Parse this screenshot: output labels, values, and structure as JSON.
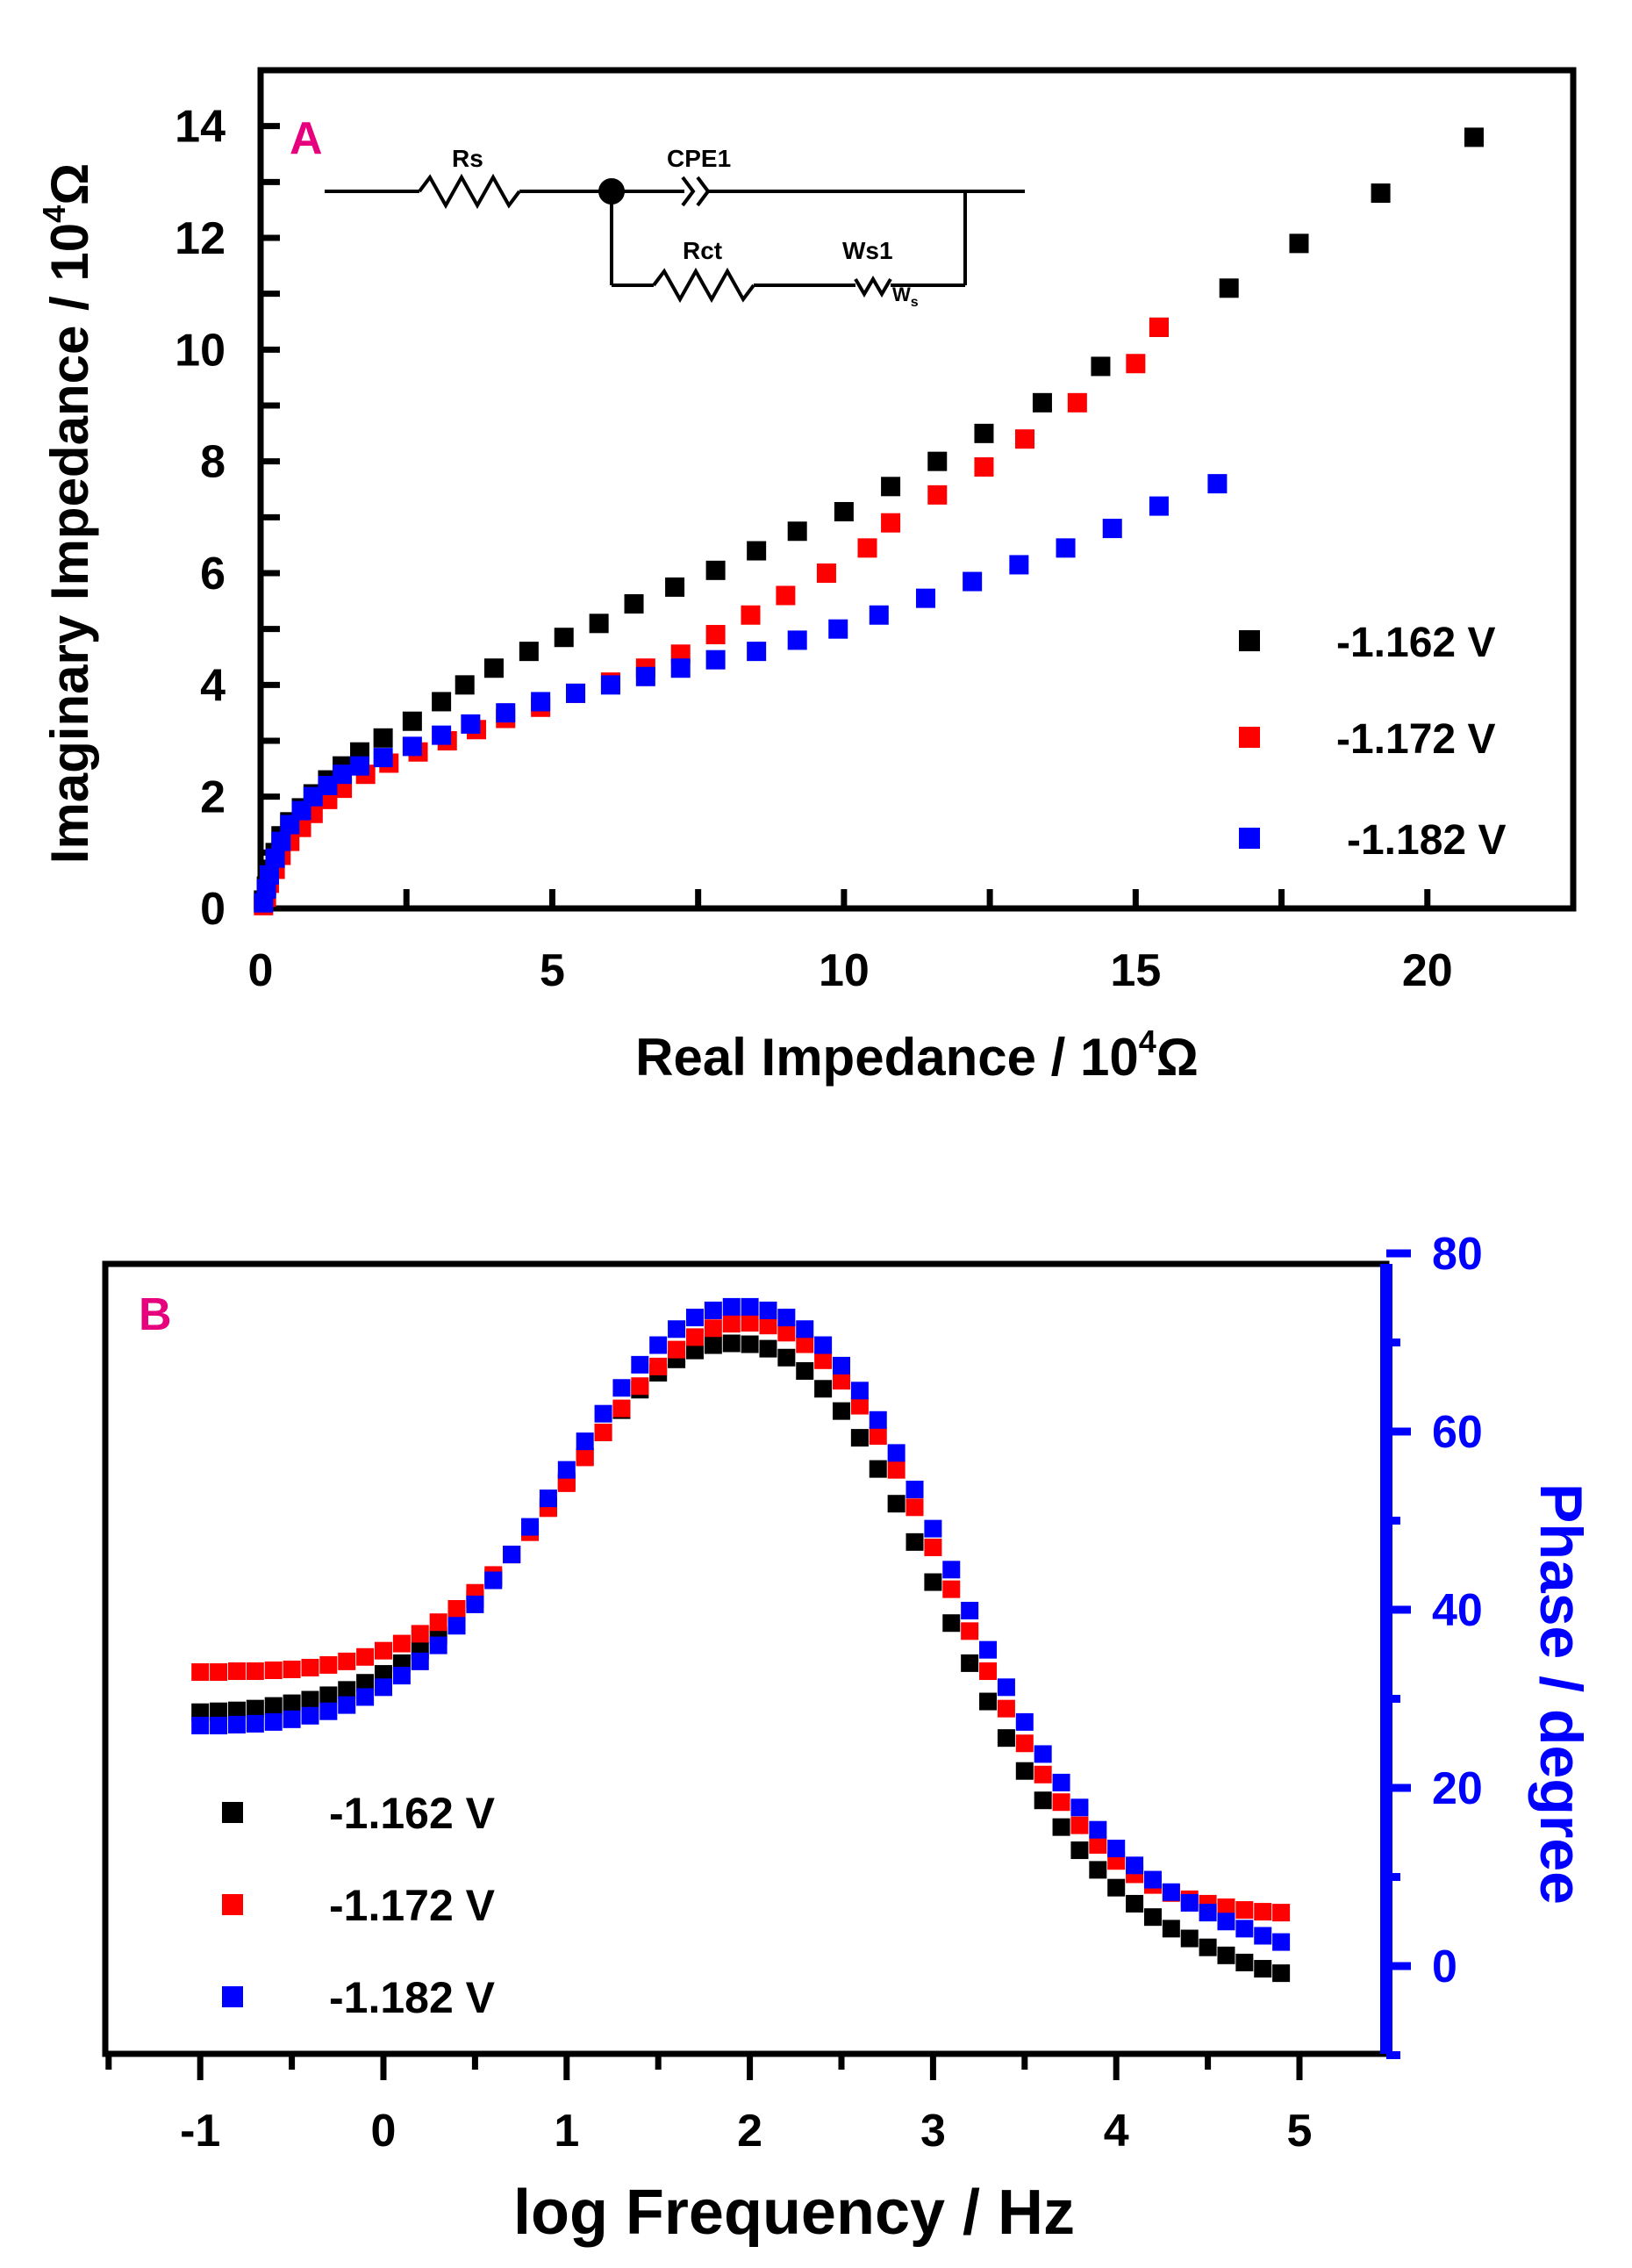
{
  "chart_data": [
    {
      "type": "scatter",
      "panel": "A",
      "title": "",
      "xlabel": "Real Impedance / 10",
      "xlabel_sup": "4",
      "xlabel_unit": "Ω",
      "ylabel": "Imaginary Impedance / 10",
      "ylabel_sup": "4",
      "ylabel_unit": "Ω",
      "xlim": [
        0,
        22.5
      ],
      "ylim": [
        0,
        15
      ],
      "xticks": [
        "0",
        "5",
        "10",
        "15",
        "20"
      ],
      "yticks": [
        "0",
        "2",
        "4",
        "6",
        "8",
        "10",
        "12",
        "14"
      ],
      "legend_position": "right",
      "circuit": {
        "r1": "Rs",
        "cpe": "CPE1",
        "r2": "Rct",
        "w": "Ws1",
        "w_symbol": "W",
        "w_sub": "s"
      },
      "series": [
        {
          "name": "-1.162 V",
          "color": "#000000",
          "points": [
            [
              0.05,
              0.15
            ],
            [
              0.1,
              0.4
            ],
            [
              0.15,
              0.7
            ],
            [
              0.25,
              1.0
            ],
            [
              0.35,
              1.3
            ],
            [
              0.5,
              1.55
            ],
            [
              0.7,
              1.8
            ],
            [
              0.9,
              2.05
            ],
            [
              1.15,
              2.3
            ],
            [
              1.4,
              2.55
            ],
            [
              1.7,
              2.8
            ],
            [
              2.1,
              3.05
            ],
            [
              2.6,
              3.35
            ],
            [
              3.1,
              3.7
            ],
            [
              3.5,
              4.0
            ],
            [
              4.0,
              4.3
            ],
            [
              4.6,
              4.6
            ],
            [
              5.2,
              4.85
            ],
            [
              5.8,
              5.1
            ],
            [
              6.4,
              5.45
            ],
            [
              7.1,
              5.75
            ],
            [
              7.8,
              6.05
            ],
            [
              8.5,
              6.4
            ],
            [
              9.2,
              6.75
            ],
            [
              10.0,
              7.1
            ],
            [
              10.8,
              7.55
            ],
            [
              11.6,
              8.0
            ],
            [
              12.4,
              8.5
            ],
            [
              13.4,
              9.05
            ],
            [
              14.4,
              9.7
            ],
            [
              15.4,
              10.4
            ],
            [
              16.6,
              11.1
            ],
            [
              17.8,
              11.9
            ],
            [
              19.2,
              12.8
            ],
            [
              20.8,
              13.8
            ]
          ]
        },
        {
          "name": "-1.172 V",
          "color": "#ff0000",
          "points": [
            [
              0.05,
              0.05
            ],
            [
              0.1,
              0.2
            ],
            [
              0.15,
              0.45
            ],
            [
              0.25,
              0.7
            ],
            [
              0.35,
              0.95
            ],
            [
              0.5,
              1.2
            ],
            [
              0.7,
              1.45
            ],
            [
              0.9,
              1.7
            ],
            [
              1.15,
              1.95
            ],
            [
              1.4,
              2.15
            ],
            [
              1.8,
              2.4
            ],
            [
              2.2,
              2.6
            ],
            [
              2.7,
              2.8
            ],
            [
              3.2,
              3.0
            ],
            [
              3.7,
              3.2
            ],
            [
              4.2,
              3.4
            ],
            [
              4.8,
              3.6
            ],
            [
              5.4,
              3.85
            ],
            [
              6.0,
              4.05
            ],
            [
              6.6,
              4.3
            ],
            [
              7.2,
              4.55
            ],
            [
              7.8,
              4.9
            ],
            [
              8.4,
              5.25
            ],
            [
              9.0,
              5.6
            ],
            [
              9.7,
              6.0
            ],
            [
              10.4,
              6.45
            ],
            [
              10.8,
              6.9
            ],
            [
              11.6,
              7.4
            ],
            [
              12.4,
              7.9
            ],
            [
              13.1,
              8.4
            ],
            [
              14.0,
              9.05
            ],
            [
              15.0,
              9.75
            ],
            [
              15.4,
              10.4
            ]
          ]
        },
        {
          "name": "-1.182 V",
          "color": "#0000ff",
          "points": [
            [
              0.05,
              0.1
            ],
            [
              0.1,
              0.35
            ],
            [
              0.15,
              0.6
            ],
            [
              0.25,
              0.9
            ],
            [
              0.35,
              1.2
            ],
            [
              0.5,
              1.5
            ],
            [
              0.7,
              1.75
            ],
            [
              0.9,
              2.0
            ],
            [
              1.15,
              2.2
            ],
            [
              1.4,
              2.4
            ],
            [
              1.7,
              2.55
            ],
            [
              2.1,
              2.7
            ],
            [
              2.6,
              2.9
            ],
            [
              3.1,
              3.1
            ],
            [
              3.6,
              3.3
            ],
            [
              4.2,
              3.5
            ],
            [
              4.8,
              3.7
            ],
            [
              5.4,
              3.85
            ],
            [
              6.0,
              4.0
            ],
            [
              6.6,
              4.15
            ],
            [
              7.2,
              4.3
            ],
            [
              7.8,
              4.45
            ],
            [
              8.5,
              4.6
            ],
            [
              9.2,
              4.8
            ],
            [
              9.9,
              5.0
            ],
            [
              10.6,
              5.25
            ],
            [
              11.4,
              5.55
            ],
            [
              12.2,
              5.85
            ],
            [
              13.0,
              6.15
            ],
            [
              13.8,
              6.45
            ],
            [
              14.6,
              6.8
            ],
            [
              15.4,
              7.2
            ],
            [
              16.4,
              7.6
            ]
          ]
        }
      ]
    },
    {
      "type": "scatter",
      "panel": "B",
      "title": "",
      "xlabel": "log Frequency / Hz",
      "ylabel": "Phase / degree",
      "xlim": [
        -1.5,
        5.5
      ],
      "ylim": [
        -10,
        80
      ],
      "xticks": [
        "-1",
        "0",
        "1",
        "2",
        "3",
        "4",
        "5"
      ],
      "yticks": [
        "0",
        "20",
        "40",
        "60",
        "80"
      ],
      "legend_position": "bottom-left",
      "series": [
        {
          "name": "-1.162 V",
          "color": "#000000",
          "x": [
            -1.0,
            -0.9,
            -0.8,
            -0.7,
            -0.6,
            -0.5,
            -0.4,
            -0.3,
            -0.2,
            -0.1,
            0.0,
            0.1,
            0.2,
            0.3,
            0.4,
            0.5,
            0.6,
            0.7,
            0.8,
            0.9,
            1.0,
            1.1,
            1.2,
            1.3,
            1.4,
            1.5,
            1.6,
            1.7,
            1.8,
            1.9,
            2.0,
            2.1,
            2.2,
            2.3,
            2.4,
            2.5,
            2.6,
            2.7,
            2.8,
            2.9,
            3.0,
            3.1,
            3.2,
            3.3,
            3.4,
            3.5,
            3.6,
            3.7,
            3.8,
            3.9,
            4.0,
            4.1,
            4.2,
            4.3,
            4.4,
            4.5,
            4.6,
            4.7,
            4.8,
            4.9
          ],
          "values": [
            28.5,
            28.6,
            28.7,
            28.9,
            29.2,
            29.5,
            29.9,
            30.4,
            31.0,
            31.8,
            32.8,
            34.0,
            35.4,
            37.1,
            39.0,
            41.2,
            43.6,
            46.2,
            48.9,
            51.6,
            54.4,
            57.2,
            59.9,
            62.4,
            64.7,
            66.6,
            68.1,
            69.1,
            69.7,
            69.9,
            69.8,
            69.3,
            68.3,
            66.8,
            64.8,
            62.3,
            59.3,
            55.8,
            51.9,
            47.6,
            43.1,
            38.5,
            34.0,
            29.7,
            25.6,
            21.9,
            18.6,
            15.6,
            13.0,
            10.8,
            8.8,
            7.0,
            5.5,
            4.2,
            3.1,
            2.1,
            1.2,
            0.4,
            -0.3,
            -0.8
          ]
        },
        {
          "name": "-1.172 V",
          "color": "#ff0000",
          "x": [
            -1.0,
            -0.9,
            -0.8,
            -0.7,
            -0.6,
            -0.5,
            -0.4,
            -0.3,
            -0.2,
            -0.1,
            0.0,
            0.1,
            0.2,
            0.3,
            0.4,
            0.5,
            0.6,
            0.7,
            0.8,
            0.9,
            1.0,
            1.1,
            1.2,
            1.3,
            1.4,
            1.5,
            1.6,
            1.7,
            1.8,
            1.9,
            2.0,
            2.1,
            2.2,
            2.3,
            2.4,
            2.5,
            2.6,
            2.7,
            2.8,
            2.9,
            3.0,
            3.1,
            3.2,
            3.3,
            3.4,
            3.5,
            3.6,
            3.7,
            3.8,
            3.9,
            4.0,
            4.1,
            4.2,
            4.3,
            4.4,
            4.5,
            4.6,
            4.7,
            4.8,
            4.9
          ],
          "values": [
            33.0,
            33.0,
            33.1,
            33.1,
            33.2,
            33.3,
            33.5,
            33.8,
            34.2,
            34.7,
            35.4,
            36.2,
            37.3,
            38.6,
            40.1,
            41.9,
            43.9,
            46.2,
            48.7,
            51.4,
            54.2,
            57.1,
            59.9,
            62.6,
            65.1,
            67.3,
            69.2,
            70.6,
            71.6,
            72.1,
            72.2,
            71.9,
            71.1,
            69.8,
            68.0,
            65.7,
            62.9,
            59.5,
            55.7,
            51.5,
            47.0,
            42.3,
            37.6,
            33.1,
            28.9,
            25.0,
            21.5,
            18.4,
            15.8,
            13.6,
            11.8,
            10.3,
            9.1,
            8.2,
            7.5,
            7.0,
            6.6,
            6.3,
            6.1,
            6.0
          ]
        },
        {
          "name": "-1.182 V",
          "color": "#0000ff",
          "x": [
            -1.0,
            -0.9,
            -0.8,
            -0.7,
            -0.6,
            -0.5,
            -0.4,
            -0.3,
            -0.2,
            -0.1,
            0.0,
            0.1,
            0.2,
            0.3,
            0.4,
            0.5,
            0.6,
            0.7,
            0.8,
            0.9,
            1.0,
            1.1,
            1.2,
            1.3,
            1.4,
            1.5,
            1.6,
            1.7,
            1.8,
            1.9,
            2.0,
            2.1,
            2.2,
            2.3,
            2.4,
            2.5,
            2.6,
            2.7,
            2.8,
            2.9,
            3.0,
            3.1,
            3.2,
            3.3,
            3.4,
            3.5,
            3.6,
            3.7,
            3.8,
            3.9,
            4.0,
            4.1,
            4.2,
            4.3,
            4.4,
            4.5,
            4.6,
            4.7,
            4.8,
            4.9
          ],
          "values": [
            27.0,
            27.0,
            27.1,
            27.2,
            27.4,
            27.7,
            28.1,
            28.6,
            29.3,
            30.2,
            31.3,
            32.6,
            34.2,
            36.0,
            38.2,
            40.6,
            43.3,
            46.2,
            49.3,
            52.5,
            55.7,
            58.9,
            62.0,
            64.9,
            67.5,
            69.7,
            71.5,
            72.8,
            73.6,
            74.0,
            74.0,
            73.6,
            72.8,
            71.5,
            69.7,
            67.4,
            64.6,
            61.3,
            57.6,
            53.5,
            49.1,
            44.5,
            39.9,
            35.5,
            31.3,
            27.4,
            23.8,
            20.6,
            17.8,
            15.3,
            13.2,
            11.3,
            9.7,
            8.3,
            7.1,
            6.0,
            5.0,
            4.2,
            3.4,
            2.7
          ]
        }
      ]
    }
  ]
}
